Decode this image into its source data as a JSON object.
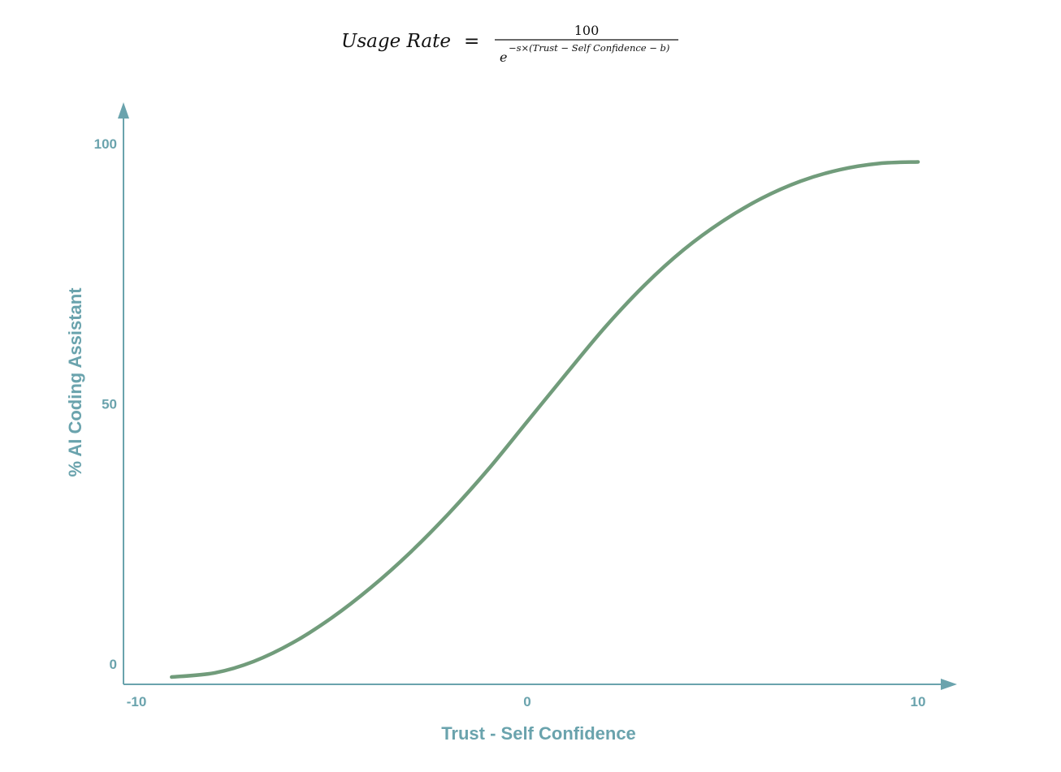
{
  "formula": {
    "lhs": "Usage Rate",
    "equals": "=",
    "numerator": "100",
    "denominator_base": "e",
    "denominator_exponent": "−s×(Trust − Self Confidence − b)"
  },
  "chart_data": {
    "type": "line",
    "title": "",
    "xlabel": "Trust - Self Confidence",
    "ylabel": "% AI Coding Assistant",
    "xlim": [
      -10,
      10
    ],
    "ylim": [
      0,
      100
    ],
    "x_ticks": [
      {
        "value": -10,
        "label": "-10"
      },
      {
        "value": 0,
        "label": "0"
      },
      {
        "value": 10,
        "label": "10"
      }
    ],
    "y_ticks": [
      {
        "value": 0,
        "label": "0"
      },
      {
        "value": 50,
        "label": "50"
      },
      {
        "value": 100,
        "label": "100"
      }
    ],
    "grid": false,
    "legend": "none",
    "series": [
      {
        "color": "#719c7b",
        "x": [
          -9.1,
          -8,
          -7,
          -6,
          -5,
          -4,
          -3,
          -2,
          -1,
          0,
          1,
          2,
          3,
          4,
          5,
          6,
          7,
          8,
          9,
          10
        ],
        "y": [
          -2.5,
          -1.7,
          0.5,
          4.1,
          8.9,
          14.7,
          21.4,
          29,
          37.4,
          46.6,
          55.8,
          64.8,
          72.8,
          79.6,
          85.1,
          89.5,
          92.8,
          95,
          96.2,
          96.5
        ]
      }
    ]
  },
  "colors": {
    "axis": "#6aa3ad",
    "curve": "#719c7b"
  }
}
